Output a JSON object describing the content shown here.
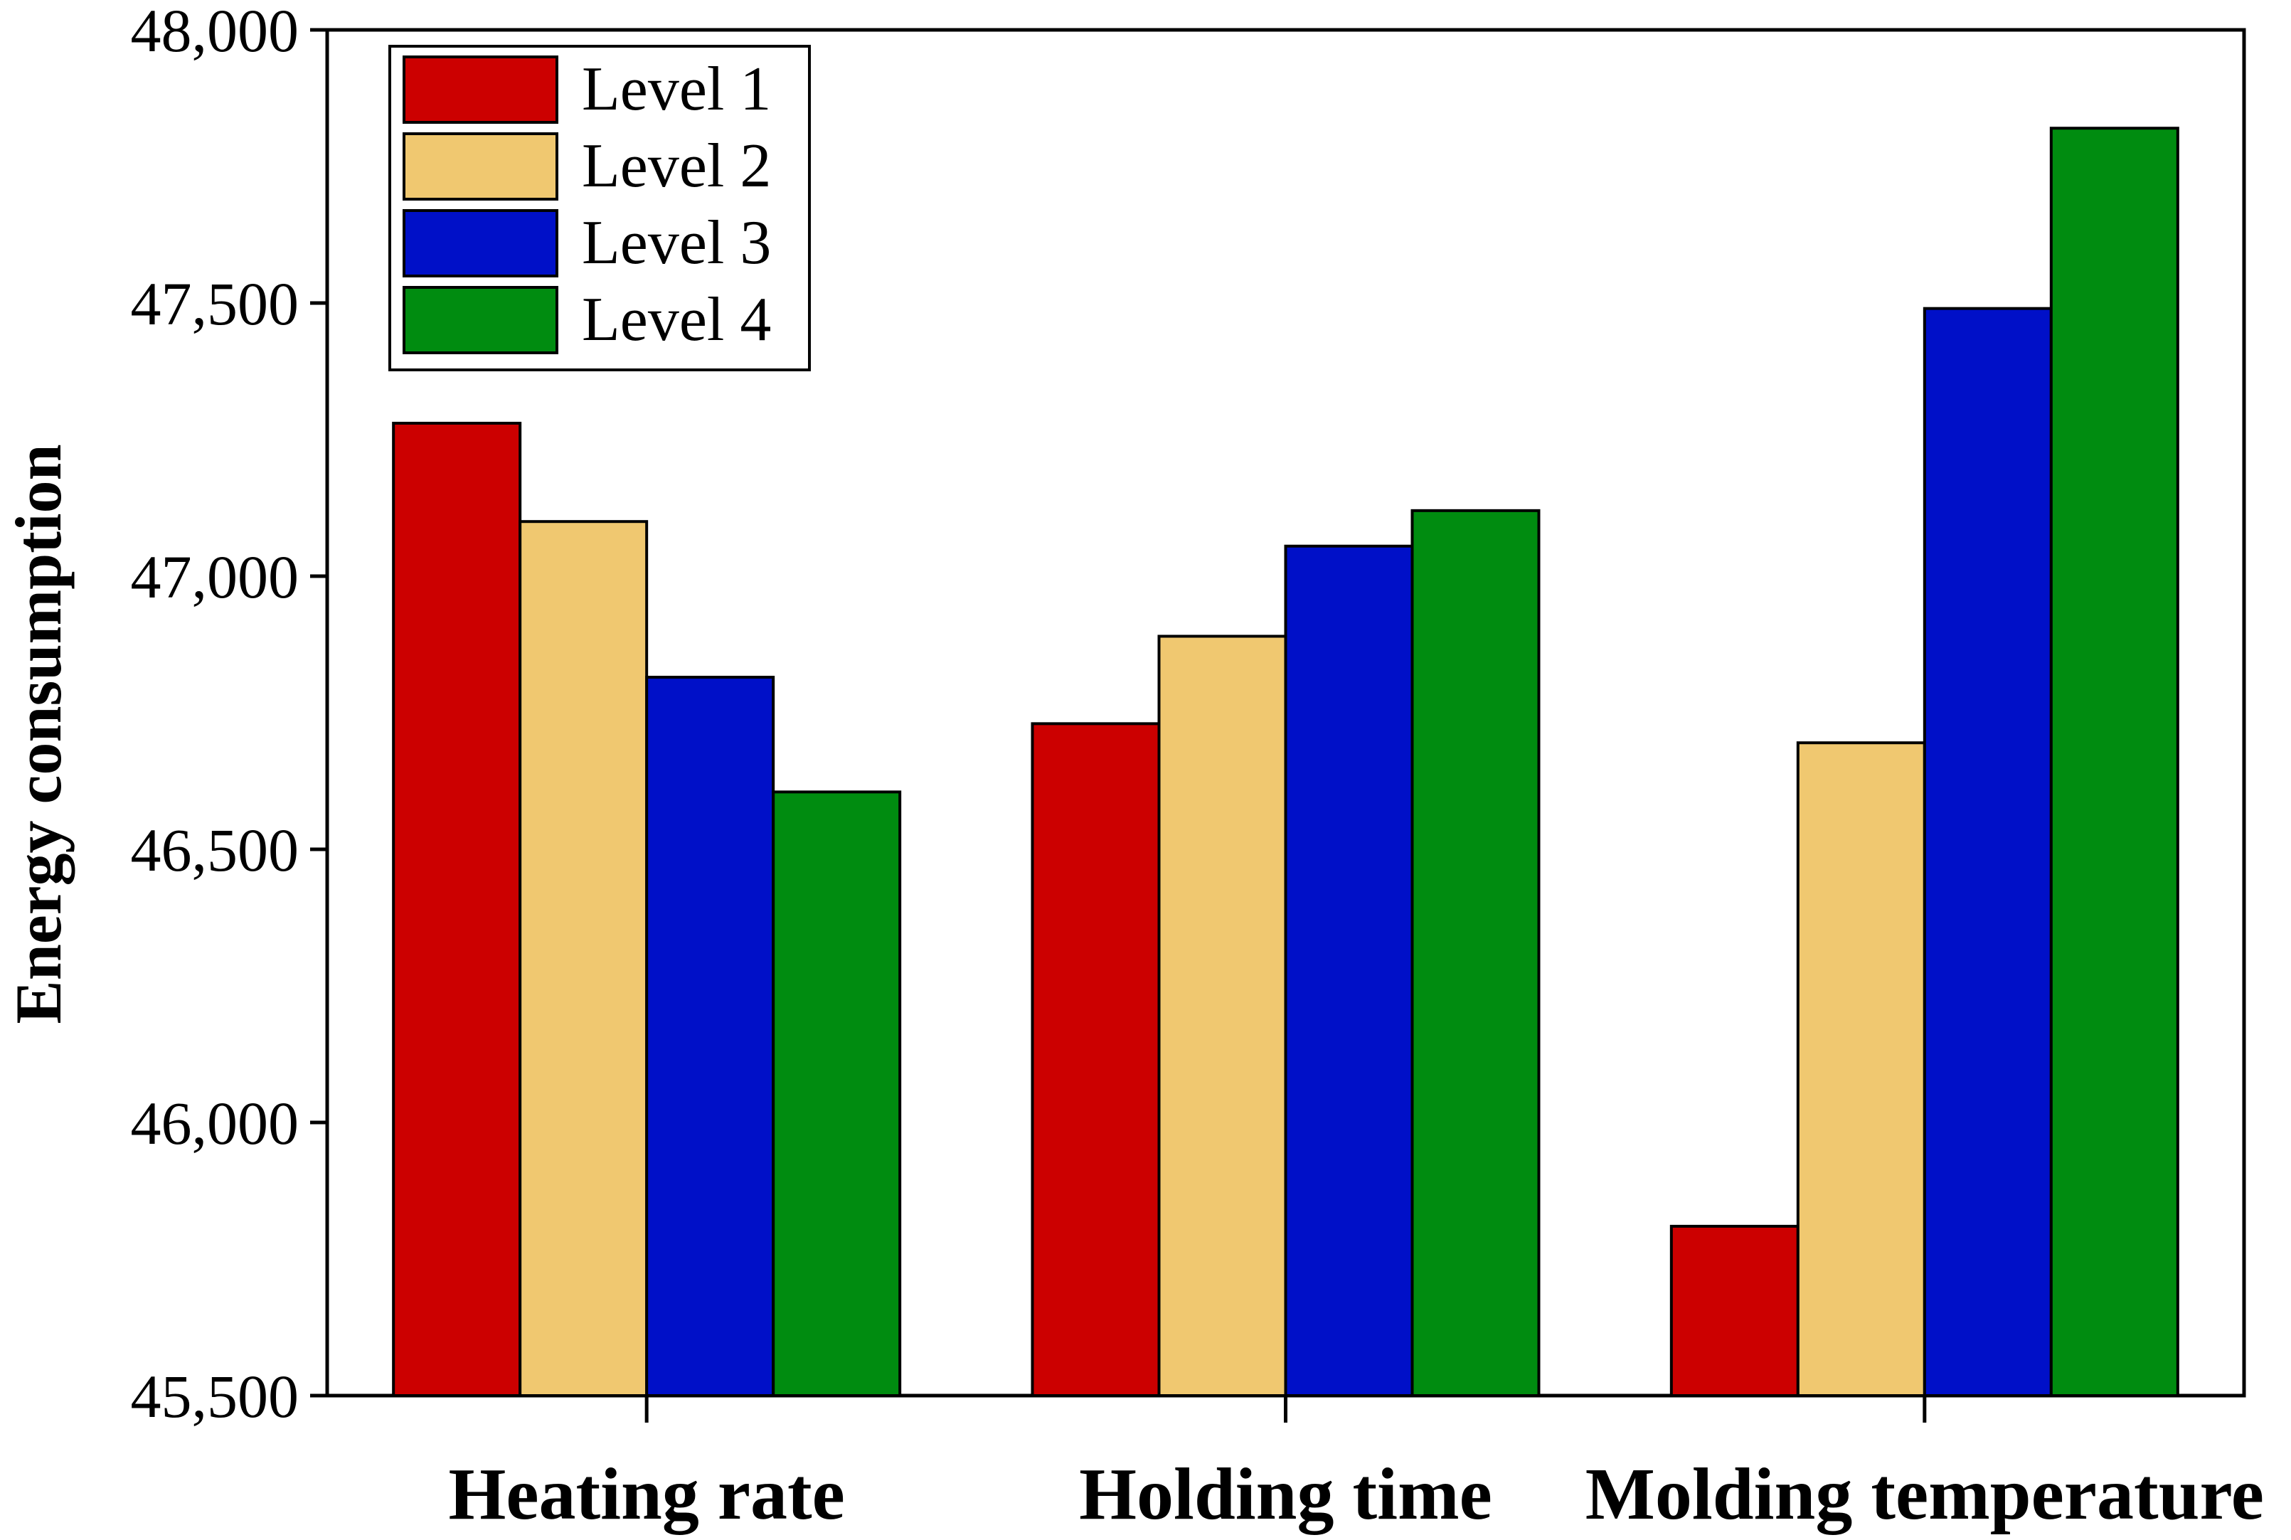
{
  "chart_data": {
    "type": "bar",
    "title": "",
    "xlabel": "",
    "ylabel": "Energy consumption",
    "ylim": [
      45500,
      48000
    ],
    "yticks": [
      45500,
      46000,
      46500,
      47000,
      47500,
      48000
    ],
    "ytick_labels": [
      "45,500",
      "46,000",
      "46,500",
      "47,000",
      "47,500",
      "48,000"
    ],
    "categories": [
      "Heating rate",
      "Holding time",
      "Molding temperature"
    ],
    "series": [
      {
        "name": "Level 1",
        "color": "#cc0000",
        "values": [
          47280,
          46730,
          45810
        ]
      },
      {
        "name": "Level 2",
        "color": "#f0c870",
        "values": [
          47100,
          46890,
          46695
        ]
      },
      {
        "name": "Level 3",
        "color": "#0010c8",
        "values": [
          46815,
          47055,
          47490
        ]
      },
      {
        "name": "Level 4",
        "color": "#008c10",
        "values": [
          46605,
          47120,
          47820
        ]
      }
    ],
    "legend_position": "top-left",
    "grid": false
  }
}
